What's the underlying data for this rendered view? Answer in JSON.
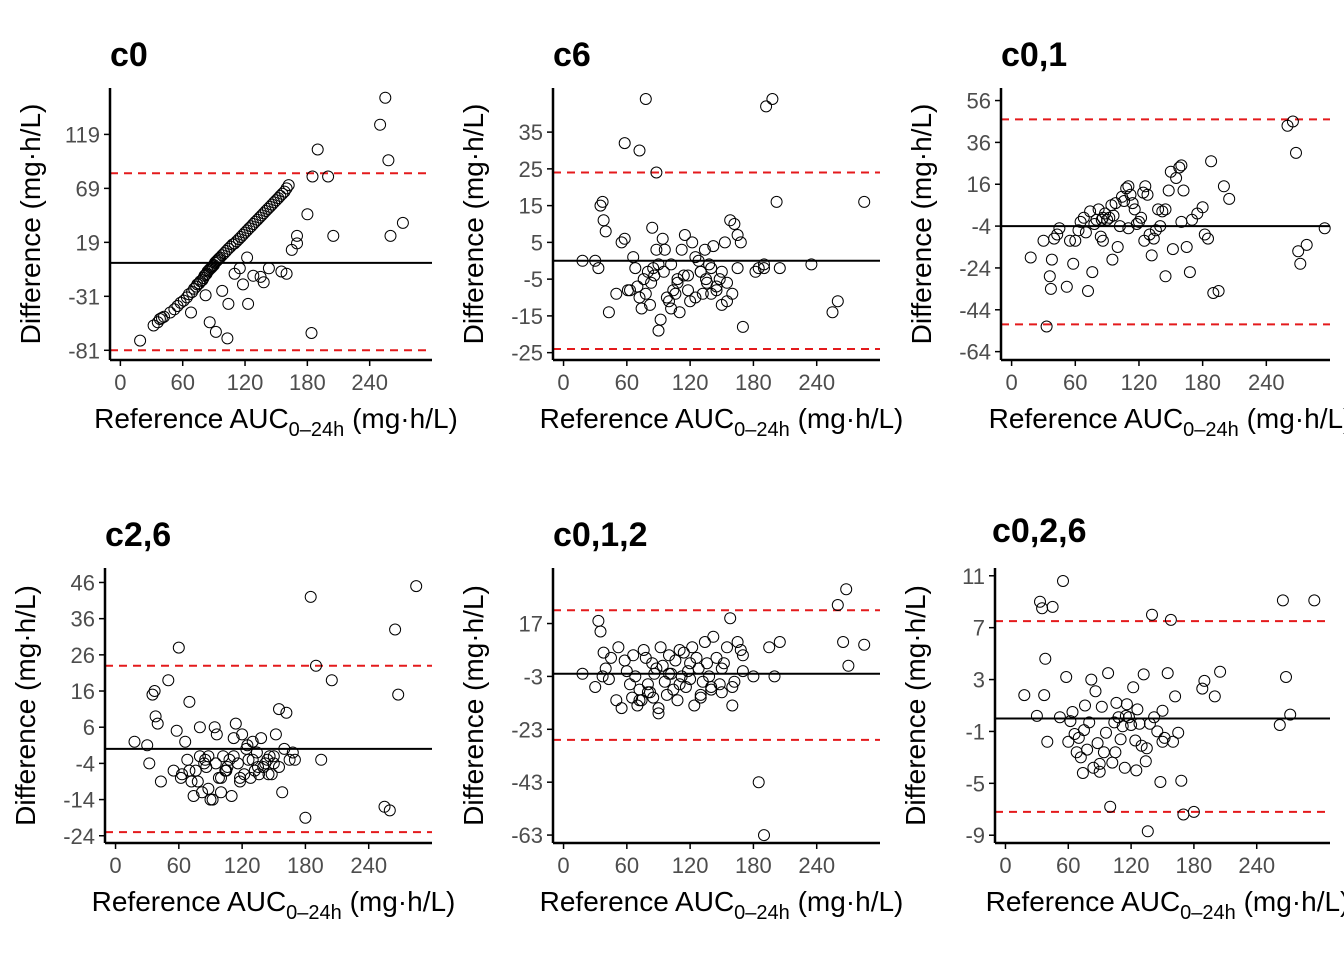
{
  "figure": {
    "x_axis_label": {
      "main": "Reference AUC",
      "sub": "0–24h",
      "unit": " (mg·h/L)"
    },
    "y_axis_label": "Difference (mg·h/L)",
    "colors": {
      "points": "#000000",
      "mean_line": "#000000",
      "limit_lines": "#e41a1c",
      "axis": "#000000",
      "tick_label": "#4d4d4d"
    }
  },
  "chart_data": [
    {
      "type": "scatter",
      "title": "c0",
      "xlim": [
        -10,
        300
      ],
      "ylim": [
        -90,
        162
      ],
      "xticks": [
        0,
        60,
        120,
        180,
        240
      ],
      "yticks": [
        -81,
        -31,
        19,
        69,
        119
      ],
      "mean_diff": 0,
      "loa_lower": -81,
      "loa_upper": 83,
      "x": [
        19,
        32,
        36,
        38,
        40,
        42,
        48,
        52,
        55,
        58,
        61,
        64,
        66,
        69,
        71,
        73,
        74,
        76,
        77,
        79,
        80,
        81,
        82,
        83,
        84,
        85,
        86,
        87,
        88,
        89,
        90,
        91,
        92,
        93,
        94,
        95,
        96,
        98,
        100,
        102,
        104,
        106,
        108,
        110,
        112,
        114,
        116,
        118,
        120,
        122,
        124,
        126,
        128,
        130,
        132,
        134,
        136,
        138,
        140,
        142,
        144,
        146,
        148,
        150,
        152,
        154,
        156,
        158,
        160,
        162,
        165,
        170,
        180,
        185,
        190,
        200,
        205,
        250,
        255,
        258,
        260,
        272,
        68,
        82,
        86,
        92,
        98,
        103,
        110,
        115,
        123,
        135,
        138,
        143,
        155,
        160,
        170,
        184,
        104,
        118,
        128,
        122
      ],
      "y": [
        -72,
        -58,
        -55,
        -52,
        -51,
        -50,
        -46,
        -43,
        -40,
        -37,
        -35,
        -32,
        -29,
        -27,
        -24,
        -22,
        -20,
        -19,
        -17,
        -16,
        -14,
        -12,
        -11,
        -10,
        -8,
        -7,
        -6,
        -5,
        -4,
        -3,
        -2,
        0,
        1,
        2,
        3,
        4,
        5,
        7,
        9,
        11,
        13,
        15,
        17,
        18,
        20,
        22,
        24,
        26,
        28,
        30,
        32,
        34,
        36,
        38,
        40,
        42,
        44,
        46,
        48,
        50,
        52,
        54,
        56,
        58,
        60,
        62,
        64,
        66,
        69,
        72,
        12,
        25,
        45,
        80,
        105,
        80,
        25,
        128,
        153,
        95,
        25,
        37,
        -46,
        -30,
        -55,
        -64,
        -26,
        -70,
        -10,
        -5,
        -38,
        -13,
        -18,
        -5,
        -8,
        -10,
        18,
        -65,
        -38,
        -20,
        -12,
        5
      ]
    },
    {
      "type": "scatter",
      "title": "c6",
      "xlim": [
        -10,
        300
      ],
      "ylim": [
        -27,
        47
      ],
      "xticks": [
        0,
        60,
        120,
        180,
        240
      ],
      "yticks": [
        -25,
        -15,
        -5,
        5,
        15,
        25,
        35
      ],
      "mean_diff": 0,
      "loa_lower": -24,
      "loa_upper": 24,
      "x": [
        18,
        30,
        33,
        35,
        37,
        38,
        40,
        43,
        50,
        55,
        58,
        58,
        61,
        63,
        66,
        68,
        70,
        72,
        74,
        76,
        78,
        80,
        82,
        83,
        85,
        86,
        88,
        90,
        92,
        94,
        96,
        98,
        100,
        102,
        104,
        106,
        108,
        110,
        112,
        115,
        118,
        120,
        122,
        125,
        128,
        130,
        132,
        134,
        136,
        138,
        140,
        142,
        145,
        148,
        150,
        153,
        155,
        158,
        160,
        162,
        165,
        168,
        170,
        182,
        185,
        190,
        190,
        192,
        198,
        202,
        205,
        235,
        255,
        260,
        285,
        72,
        78,
        84,
        88,
        90,
        95,
        102,
        108,
        114,
        118,
        125,
        130,
        135,
        140,
        145,
        150,
        155,
        165
      ],
      "y": [
        0,
        0,
        -2,
        15,
        16,
        11,
        8,
        -14,
        -9,
        5,
        6,
        32,
        -8,
        -8,
        1,
        -2,
        -7,
        -10,
        -13,
        -5,
        -9,
        -3,
        -12,
        -6,
        -2,
        -4,
        24,
        -19,
        -16,
        6,
        3,
        -10,
        -11,
        -1,
        -8,
        -9,
        -5,
        -14,
        3,
        7,
        -4,
        -11,
        5,
        -10,
        0,
        -3,
        -9,
        3,
        -6,
        -1,
        -9,
        4,
        -7,
        -5,
        -3,
        5,
        -11,
        11,
        -9,
        10,
        7,
        5,
        -18,
        -3,
        -2,
        -1,
        -2,
        42,
        44,
        16,
        -2,
        -1,
        -14,
        -11,
        16,
        30,
        44,
        9,
        3,
        -1,
        -3,
        -13,
        -6,
        -4,
        -8,
        1,
        -3,
        -5,
        -2,
        -8,
        -12,
        -6,
        -2
      ]
    },
    {
      "type": "scatter",
      "title": "c0,1",
      "xlim": [
        -10,
        300
      ],
      "ylim": [
        -68,
        62
      ],
      "xticks": [
        0,
        60,
        120,
        180,
        240
      ],
      "yticks": [
        -64,
        -44,
        -24,
        -4,
        16,
        36,
        56
      ],
      "mean_diff": -4,
      "loa_lower": -51,
      "loa_upper": 47,
      "x": [
        18,
        30,
        33,
        36,
        37,
        38,
        40,
        43,
        45,
        52,
        55,
        58,
        60,
        63,
        65,
        68,
        70,
        72,
        74,
        76,
        78,
        80,
        82,
        84,
        85,
        86,
        88,
        90,
        92,
        94,
        96,
        98,
        100,
        102,
        104,
        106,
        108,
        110,
        112,
        114,
        116,
        118,
        120,
        122,
        124,
        126,
        128,
        130,
        132,
        134,
        136,
        138,
        140,
        142,
        145,
        148,
        150,
        152,
        155,
        158,
        160,
        162,
        165,
        168,
        170,
        180,
        182,
        185,
        188,
        190,
        195,
        200,
        205,
        260,
        265,
        268,
        270,
        272,
        278,
        295,
        86,
        95,
        110,
        125,
        145,
        160,
        175
      ],
      "y": [
        -19,
        -11,
        -52,
        -28,
        -34,
        -20,
        -10,
        -8,
        -5,
        -33,
        -11,
        -22,
        -11,
        -6,
        -2,
        0,
        -7,
        -35,
        3,
        -26,
        -3,
        -1,
        4,
        -9,
        -1,
        0,
        2,
        -1,
        0,
        6,
        1,
        7,
        -14,
        -4,
        10,
        8,
        14,
        15,
        11,
        7,
        4,
        -3,
        -2,
        0,
        12,
        15,
        11,
        -8,
        -18,
        -10,
        -6,
        4,
        -4,
        3,
        4,
        13,
        22,
        -15,
        19,
        24,
        25,
        13,
        -14,
        -26,
        -1,
        5,
        -8,
        -10,
        27,
        -36,
        -35,
        15,
        9,
        44,
        46,
        31,
        -16,
        -22,
        -13,
        -5,
        -11,
        -20,
        -5,
        -11,
        -28,
        -2,
        2
      ]
    },
    {
      "type": "scatter",
      "title": "c2,6",
      "xlim": [
        -10,
        300
      ],
      "ylim": [
        -26,
        50
      ],
      "xticks": [
        0,
        60,
        120,
        180,
        240
      ],
      "yticks": [
        -24,
        -14,
        -4,
        6,
        16,
        26,
        36,
        46
      ],
      "mean_diff": 0,
      "loa_lower": -23,
      "loa_upper": 23,
      "x": [
        18,
        30,
        32,
        35,
        37,
        38,
        40,
        43,
        50,
        55,
        58,
        60,
        62,
        63,
        66,
        68,
        70,
        72,
        74,
        76,
        78,
        80,
        82,
        84,
        85,
        86,
        88,
        90,
        92,
        94,
        96,
        98,
        100,
        102,
        104,
        106,
        108,
        110,
        112,
        114,
        116,
        118,
        120,
        122,
        124,
        126,
        128,
        130,
        132,
        134,
        136,
        138,
        140,
        142,
        144,
        146,
        148,
        150,
        152,
        155,
        158,
        160,
        162,
        165,
        168,
        170,
        180,
        185,
        190,
        195,
        205,
        255,
        260,
        265,
        268,
        285,
        70,
        80,
        88,
        95,
        100,
        105,
        112,
        118,
        125,
        130,
        135,
        145,
        150,
        155
      ],
      "y": [
        2,
        1,
        -4,
        15,
        16,
        9,
        7,
        -9,
        19,
        -6,
        5,
        28,
        -8,
        -7,
        2,
        -3,
        -6,
        -9,
        -13,
        -6,
        -9,
        -2,
        -12,
        -4,
        -3,
        -5,
        -11,
        -14,
        -14,
        6,
        4,
        -8,
        -8,
        -2,
        -6,
        -5,
        -3,
        -13,
        3,
        7,
        -4,
        -9,
        4,
        -7,
        0,
        -3,
        -8,
        2,
        -6,
        -1,
        -7,
        3,
        -5,
        -4,
        -3,
        -2,
        -7,
        -4,
        4,
        11,
        -12,
        0,
        10,
        -3,
        -1,
        -3,
        -19,
        42,
        23,
        -3,
        19,
        -16,
        -17,
        33,
        15,
        45,
        13,
        6,
        -2,
        -4,
        -12,
        -6,
        -2,
        -8,
        1,
        -3,
        -5,
        -7,
        -2,
        -5
      ]
    },
    {
      "type": "scatter",
      "title": "c0,1,2",
      "xlim": [
        -10,
        300
      ],
      "ylim": [
        -66,
        38
      ],
      "xticks": [
        0,
        60,
        120,
        180,
        240
      ],
      "yticks": [
        -63,
        -43,
        -23,
        -3,
        17
      ],
      "mean_diff": -2,
      "loa_lower": -27,
      "loa_upper": 22,
      "x": [
        18,
        30,
        33,
        35,
        37,
        38,
        40,
        43,
        45,
        50,
        52,
        55,
        58,
        60,
        63,
        65,
        66,
        68,
        70,
        72,
        74,
        76,
        78,
        80,
        82,
        84,
        85,
        86,
        88,
        90,
        92,
        94,
        96,
        98,
        100,
        102,
        104,
        106,
        108,
        110,
        112,
        114,
        116,
        118,
        120,
        122,
        124,
        126,
        128,
        130,
        132,
        134,
        136,
        138,
        140,
        142,
        145,
        148,
        150,
        152,
        155,
        158,
        160,
        162,
        165,
        168,
        170,
        180,
        185,
        190,
        195,
        200,
        205,
        260,
        265,
        268,
        270,
        285,
        72,
        80,
        90,
        100,
        110,
        120,
        130,
        140,
        150,
        160,
        170
      ],
      "y": [
        -2,
        -7,
        18,
        14,
        -3,
        6,
        0,
        -4,
        4,
        -12,
        8,
        -15,
        3,
        -1,
        -6,
        -11,
        5,
        -3,
        -14,
        -8,
        -12,
        7,
        4,
        -6,
        -9,
        2,
        -11,
        -2,
        0,
        -17,
        8,
        1,
        -5,
        -10,
        5,
        -2,
        -8,
        3,
        -12,
        7,
        -3,
        6,
        -7,
        -1,
        2,
        8,
        -14,
        4,
        0,
        -11,
        -5,
        10,
        2,
        -3,
        -8,
        12,
        4,
        -6,
        0,
        2,
        8,
        19,
        -14,
        -5,
        10,
        7,
        -1,
        -3,
        -43,
        -63,
        8,
        -3,
        10,
        24,
        10,
        30,
        1,
        9,
        -12,
        -9,
        -15,
        -2,
        -6,
        -4,
        -10,
        -7,
        -9,
        -7,
        5
      ]
    },
    {
      "type": "scatter",
      "title": "c0,2,6",
      "xlim": [
        -10,
        310
      ],
      "ylim": [
        -9.6,
        11.6
      ],
      "xticks": [
        0,
        60,
        120,
        180,
        240
      ],
      "yticks": [
        -9,
        -5,
        -1,
        3,
        7,
        11
      ],
      "mean_diff": 0,
      "loa_lower": -7.2,
      "loa_upper": 7.5,
      "x": [
        18,
        30,
        33,
        35,
        37,
        38,
        40,
        45,
        52,
        55,
        58,
        60,
        62,
        64,
        66,
        68,
        70,
        72,
        74,
        76,
        78,
        80,
        82,
        84,
        86,
        88,
        90,
        92,
        94,
        96,
        98,
        100,
        102,
        104,
        106,
        108,
        110,
        112,
        114,
        116,
        118,
        120,
        122,
        124,
        126,
        128,
        130,
        132,
        134,
        136,
        138,
        140,
        142,
        145,
        148,
        150,
        152,
        155,
        158,
        160,
        162,
        165,
        168,
        170,
        180,
        188,
        190,
        200,
        205,
        262,
        265,
        268,
        272,
        295,
        75,
        90,
        105,
        115,
        125,
        135,
        150
      ],
      "y": [
        1.8,
        0.2,
        9.0,
        8.5,
        1.8,
        4.6,
        -1.8,
        8.6,
        0.1,
        10.6,
        3.2,
        -1.8,
        -0.2,
        0.5,
        -1.2,
        -2.6,
        -1.5,
        -3.0,
        -4.2,
        1.0,
        -2.4,
        -0.3,
        3.0,
        -3.8,
        2.1,
        -1.9,
        -4.1,
        0.9,
        -2.6,
        -1.1,
        3.5,
        -6.8,
        -3.4,
        -0.3,
        1.2,
        0.1,
        -1.6,
        -0.6,
        -3.8,
        1.1,
        0.1,
        -0.5,
        2.4,
        -1.7,
        0.7,
        -0.4,
        -2.1,
        3.4,
        -3.3,
        -8.7,
        -0.4,
        8.0,
        0.1,
        -1.0,
        -4.9,
        0.6,
        -1.5,
        3.5,
        7.6,
        -1.8,
        1.7,
        -1.1,
        -4.8,
        -7.4,
        -7.2,
        2.3,
        2.9,
        1.7,
        3.6,
        -0.5,
        9.1,
        3.2,
        0.3,
        9.1,
        -0.9,
        -3.5,
        -2.6,
        0.2,
        -4.0,
        -2.3,
        -1.8
      ]
    }
  ]
}
